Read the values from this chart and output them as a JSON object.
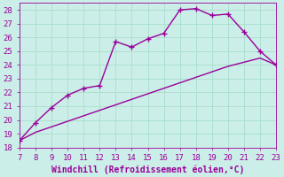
{
  "xlabel": "Windchill (Refroidissement éolien,°C)",
  "x_values": [
    7,
    8,
    9,
    10,
    11,
    12,
    13,
    14,
    15,
    16,
    17,
    18,
    19,
    20,
    21,
    22,
    23
  ],
  "y_curve": [
    18.5,
    19.8,
    20.9,
    21.8,
    22.3,
    22.5,
    25.7,
    25.3,
    25.9,
    26.3,
    28.0,
    28.1,
    27.6,
    27.7,
    26.4,
    25.0,
    24.0
  ],
  "y_line": [
    18.5,
    19.1,
    19.5,
    19.9,
    20.3,
    20.7,
    21.1,
    21.5,
    21.9,
    22.3,
    22.7,
    23.1,
    23.5,
    23.9,
    24.2,
    24.5,
    24.0
  ],
  "line_color": "#990099",
  "bg_color": "#cceee8",
  "grid_color": "#aaddcc",
  "ylim": [
    18,
    28.5
  ],
  "xlim": [
    7,
    23
  ],
  "yticks": [
    18,
    19,
    20,
    21,
    22,
    23,
    24,
    25,
    26,
    27,
    28
  ],
  "xticks": [
    7,
    8,
    9,
    10,
    11,
    12,
    13,
    14,
    15,
    16,
    17,
    18,
    19,
    20,
    21,
    22,
    23
  ],
  "marker": "+",
  "markersize": 5,
  "linewidth": 1.0,
  "xlabel_fontsize": 7,
  "tick_fontsize": 6.5
}
